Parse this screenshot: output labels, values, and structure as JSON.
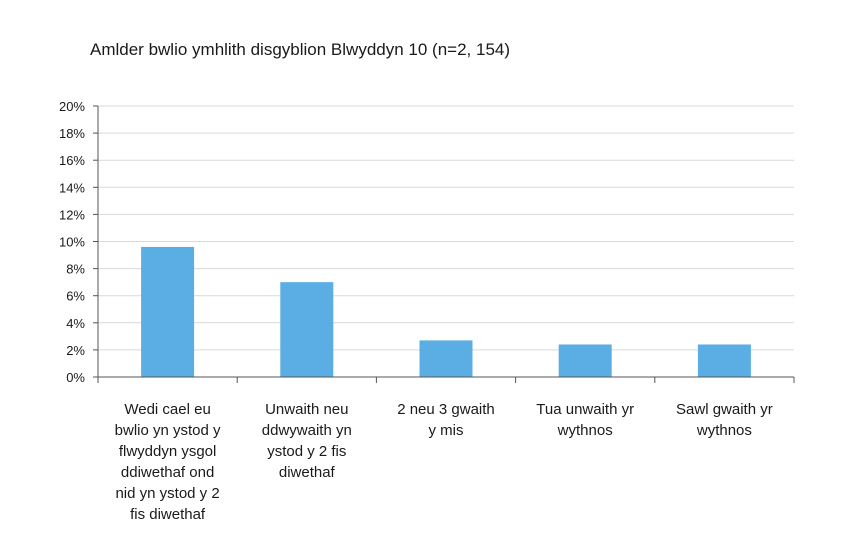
{
  "chart_data": {
    "type": "bar",
    "title": "Amlder bwlio ymhlith disgyblion Blwyddyn 10 (n=2, 154)",
    "categories": [
      "Wedi cael eu bwlio yn ystod y flwyddyn ysgol ddiwethaf ond nid yn ystod y 2 fis diwethaf",
      "Unwaith neu ddwywaith yn ystod y 2 fis diwethaf",
      "2 neu 3 gwaith y mis",
      "Tua unwaith yr wythnos",
      "Sawl gwaith yr wythnos"
    ],
    "category_lines": [
      [
        "Wedi cael eu",
        "bwlio yn ystod y",
        "flwyddyn ysgol",
        "ddiwethaf ond",
        "nid yn ystod y 2",
        "fis diwethaf"
      ],
      [
        "Unwaith neu",
        "ddwywaith yn",
        "ystod y 2 fis",
        "diwethaf"
      ],
      [
        "2 neu 3 gwaith",
        "y mis"
      ],
      [
        "Tua unwaith yr",
        "wythnos"
      ],
      [
        "Sawl gwaith yr",
        "wythnos"
      ]
    ],
    "values": [
      9.6,
      7.0,
      2.7,
      2.4,
      2.4
    ],
    "ylim": [
      0,
      20
    ],
    "yticks": [
      "0%",
      "2%",
      "4%",
      "6%",
      "8%",
      "10%",
      "12%",
      "14%",
      "16%",
      "18%",
      "20%"
    ],
    "ytick_values": [
      0,
      2,
      4,
      6,
      8,
      10,
      12,
      14,
      16,
      18,
      20
    ],
    "grid": true,
    "colors": {
      "bar": "#5aaee3",
      "grid": "#d9d9d9",
      "axis": "#555555"
    }
  }
}
